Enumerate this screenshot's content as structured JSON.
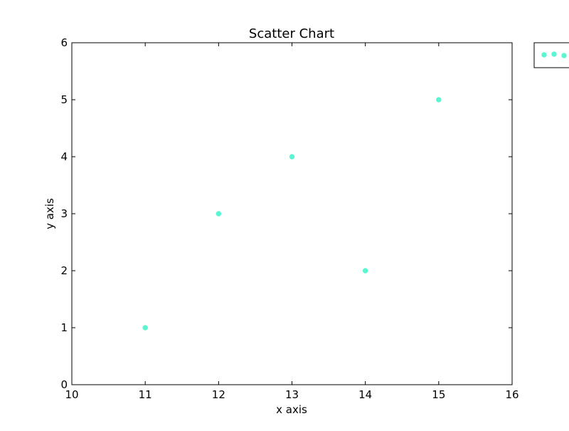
{
  "chart_data": {
    "type": "scatter",
    "title": "Scatter Chart",
    "xlabel": "x axis",
    "ylabel": "y axis",
    "xlim": [
      10,
      16
    ],
    "ylim": [
      0,
      6
    ],
    "xticks": [
      "10",
      "11",
      "12",
      "13",
      "14",
      "15",
      "16"
    ],
    "yticks": [
      "0",
      "1",
      "2",
      "3",
      "4",
      "5",
      "6"
    ],
    "grid": false,
    "legend": {
      "placement": "outside-top-right",
      "entries": [
        ""
      ]
    },
    "series": [
      {
        "color": "#5cf5d2",
        "x": [
          11,
          12,
          13,
          14,
          15
        ],
        "y": [
          1,
          3,
          4,
          2,
          5
        ]
      }
    ]
  }
}
